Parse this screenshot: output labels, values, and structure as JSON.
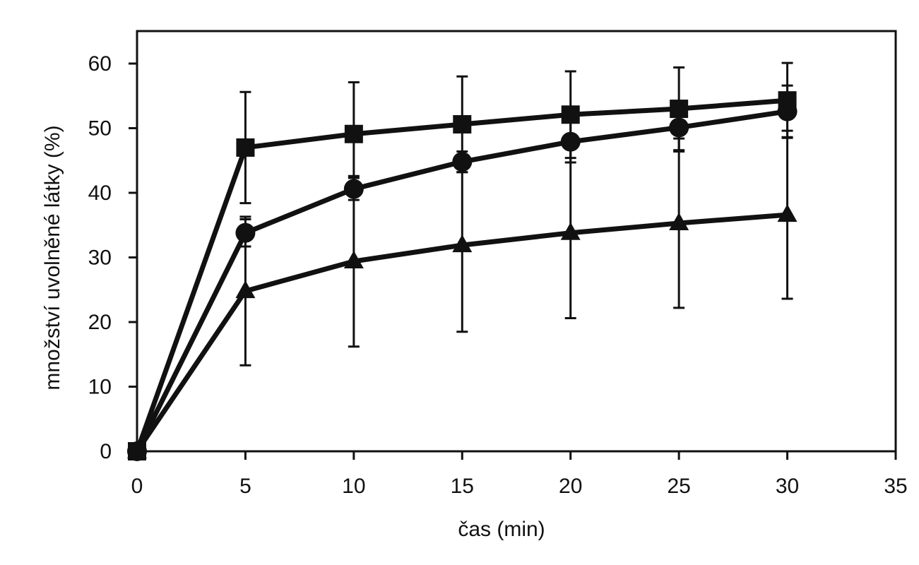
{
  "chart_data": {
    "type": "line",
    "title": "",
    "xlabel": "čas (min)",
    "ylabel": "množství uvolněné látky (%)",
    "xlim": [
      0,
      35
    ],
    "ylim": [
      0,
      60
    ],
    "xticks": [
      0,
      5,
      10,
      15,
      20,
      25,
      30,
      35
    ],
    "yticks": [
      0,
      10,
      20,
      30,
      40,
      50,
      60
    ],
    "grid": false,
    "legend": "none",
    "x": [
      0,
      5,
      10,
      15,
      20,
      25,
      30
    ],
    "series": [
      {
        "marker": "square",
        "values": [
          0,
          47,
          49.1,
          50.6,
          52.1,
          53,
          54.3
        ],
        "errors": [
          0,
          8.6,
          8,
          7.4,
          6.7,
          6.4,
          5.8
        ]
      },
      {
        "marker": "circle",
        "values": [
          0,
          33.8,
          40.6,
          44.8,
          47.9,
          50.1,
          52.6
        ],
        "errors": [
          0,
          2.1,
          1.7,
          1.6,
          3.2,
          3.7,
          4
        ]
      },
      {
        "marker": "triangle",
        "values": [
          0,
          24.8,
          29.4,
          31.9,
          33.8,
          35.3,
          36.6
        ],
        "errors": [
          0,
          11.5,
          13.2,
          13.4,
          13.2,
          13.1,
          13
        ]
      }
    ],
    "colors": {
      "line": "#111111",
      "axis": "#111111",
      "background": "#ffffff"
    }
  }
}
